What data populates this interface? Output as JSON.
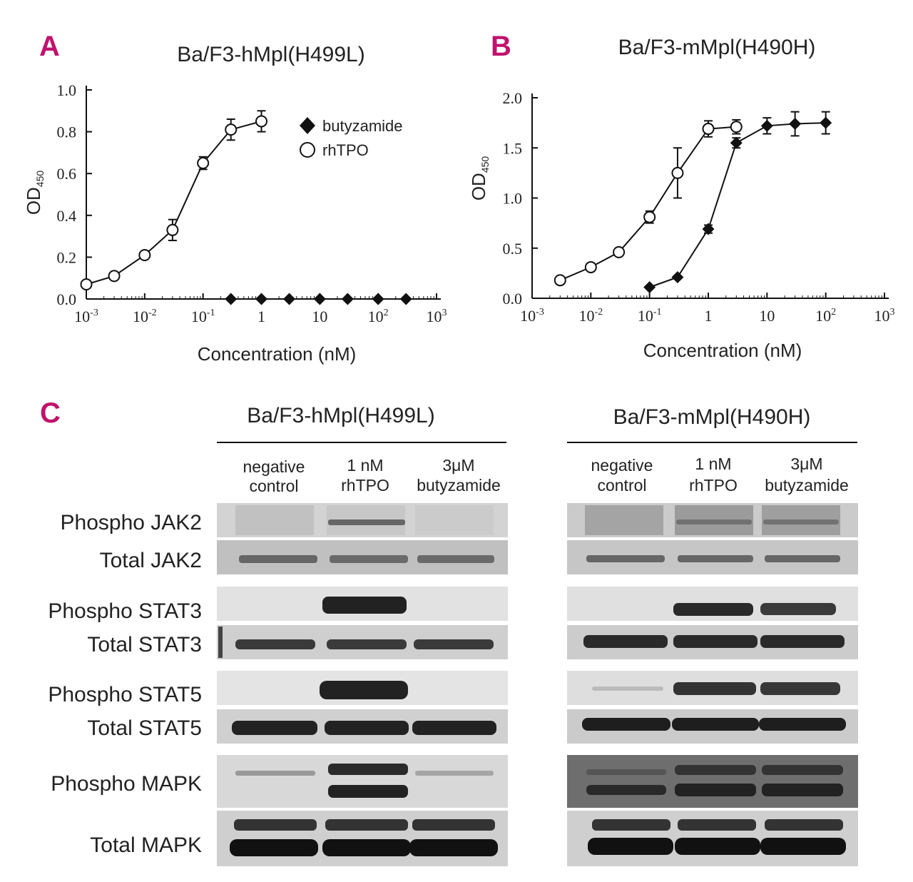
{
  "panels": {
    "A": {
      "letter": "A",
      "title": "Ba/F3-hMpl(H499L)",
      "xlabel": "Concentration (nM)",
      "ylabel_main": "OD",
      "ylabel_sub": "450",
      "yticks": [
        "0.0",
        "0.2",
        "0.4",
        "0.6",
        "0.8",
        "1.0"
      ],
      "legend": [
        {
          "symbol": "filled-diamond",
          "label": "butyzamide"
        },
        {
          "symbol": "open-circle",
          "label": "rhTPO"
        }
      ]
    },
    "B": {
      "letter": "B",
      "title": "Ba/F3-mMpl(H490H)",
      "xlabel": "Concentration (nM)",
      "ylabel_main": "OD",
      "ylabel_sub": "450",
      "yticks": [
        "0.0",
        "0.5",
        "1.0",
        "1.5",
        "2.0"
      ]
    },
    "C": {
      "letter": "C",
      "groups": [
        {
          "title": "Ba/F3-hMpl(H499L)",
          "columns": [
            [
              "negative",
              "control"
            ],
            [
              "1 nM",
              "rhTPO"
            ],
            [
              "3μM",
              "butyzamide"
            ]
          ]
        },
        {
          "title": "Ba/F3-mMpl(H490H)",
          "columns": [
            [
              "negative",
              "control"
            ],
            [
              "1 nM",
              "rhTPO"
            ],
            [
              "3μM",
              "butyzamide"
            ]
          ]
        }
      ],
      "rows": [
        "Phospho JAK2",
        "Total JAK2",
        "Phospho STAT3",
        "Total STAT3",
        "Phospho STAT5",
        "Total STAT5",
        "Phospho MAPK",
        "Total MAPK"
      ]
    }
  },
  "chart_data": [
    {
      "type": "line",
      "title": "Ba/F3-hMpl(H499L)",
      "xlabel": "Concentration (nM)",
      "ylabel": "OD450",
      "xscale": "log",
      "xlim": [
        0.001,
        1000
      ],
      "ylim": [
        0,
        1.0
      ],
      "xticks": [
        {
          "v": 0.001,
          "b": "10",
          "e": "-3"
        },
        {
          "v": 0.01,
          "b": "10",
          "e": "-2"
        },
        {
          "v": 0.1,
          "b": "10",
          "e": "-1"
        },
        {
          "v": 1,
          "b": "1",
          "e": ""
        },
        {
          "v": 10,
          "b": "10",
          "e": ""
        },
        {
          "v": 100,
          "b": "10",
          "e": "2"
        },
        {
          "v": 1000,
          "b": "10",
          "e": "3"
        }
      ],
      "legend_position": "top-right",
      "series": [
        {
          "name": "butyzamide",
          "marker": "filled-diamond",
          "x": [
            0.3,
            1,
            3,
            10,
            30,
            100,
            300
          ],
          "y": [
            0,
            0,
            0,
            0,
            0,
            0,
            0
          ],
          "err": [
            0,
            0,
            0,
            0,
            0,
            0,
            0
          ]
        },
        {
          "name": "rhTPO",
          "marker": "open-circle",
          "x": [
            0.001,
            0.003,
            0.01,
            0.03,
            0.1,
            0.3,
            1
          ],
          "y": [
            0.07,
            0.11,
            0.21,
            0.33,
            0.65,
            0.81,
            0.85
          ],
          "err": [
            0,
            0,
            0,
            0.05,
            0.03,
            0.05,
            0.05
          ]
        }
      ]
    },
    {
      "type": "line",
      "title": "Ba/F3-mMpl(H490H)",
      "xlabel": "Concentration (nM)",
      "ylabel": "OD450",
      "xscale": "log",
      "xlim": [
        0.001,
        1000
      ],
      "ylim": [
        0,
        2.0
      ],
      "xticks": [
        {
          "v": 0.001,
          "b": "10",
          "e": "-3"
        },
        {
          "v": 0.01,
          "b": "10",
          "e": "-2"
        },
        {
          "v": 0.1,
          "b": "10",
          "e": "-1"
        },
        {
          "v": 1,
          "b": "1",
          "e": ""
        },
        {
          "v": 10,
          "b": "10",
          "e": ""
        },
        {
          "v": 100,
          "b": "10",
          "e": "2"
        },
        {
          "v": 1000,
          "b": "10",
          "e": "3"
        }
      ],
      "series": [
        {
          "name": "butyzamide",
          "marker": "filled-diamond",
          "x": [
            0.1,
            0.3,
            1,
            3,
            10,
            30,
            100
          ],
          "y": [
            0.11,
            0.21,
            0.69,
            1.55,
            1.72,
            1.74,
            1.75
          ],
          "err": [
            0,
            0,
            0.04,
            0.05,
            0.08,
            0.12,
            0.11
          ]
        },
        {
          "name": "rhTPO",
          "marker": "open-circle",
          "x": [
            0.003,
            0.01,
            0.03,
            0.1,
            0.3,
            1,
            3
          ],
          "y": [
            0.18,
            0.31,
            0.46,
            0.81,
            1.25,
            1.69,
            1.71
          ],
          "err": [
            0,
            0,
            0,
            0.06,
            0.25,
            0.08,
            0.07
          ]
        }
      ]
    }
  ]
}
